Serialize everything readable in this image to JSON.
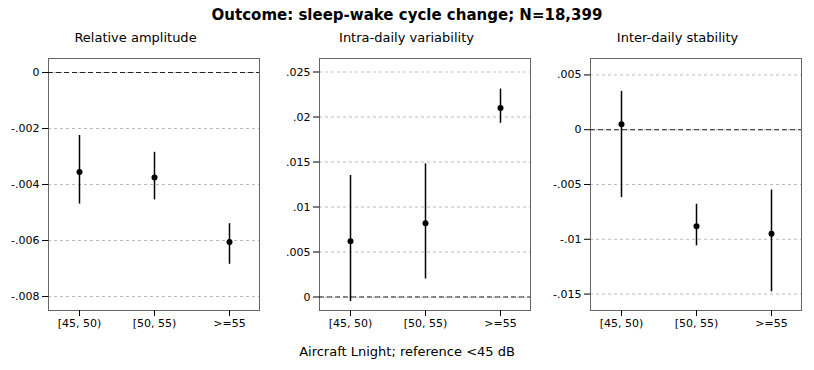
{
  "chart_data": {
    "type": "errorbar",
    "title": "Outcome: sleep-wake cycle change; N=18,399",
    "xlabel": "Aircraft Lnight; reference <45 dB",
    "categories": [
      "[45, 50)",
      "[50, 55)",
      ">=55"
    ],
    "grid": true,
    "panels": [
      {
        "title": "Relative amplitude",
        "values": [
          -0.00355,
          -0.00375,
          -0.00605
        ],
        "ci_low": [
          -0.0047,
          -0.00455,
          -0.00685
        ],
        "ci_high": [
          -0.00225,
          -0.00285,
          -0.0054
        ],
        "ylim": [
          -0.0085,
          0.0005
        ],
        "yticks": [
          {
            "value": -0.008,
            "label": "-.008"
          },
          {
            "value": -0.006,
            "label": "-.006"
          },
          {
            "value": -0.004,
            "label": "-.004"
          },
          {
            "value": -0.002,
            "label": "-.002"
          },
          0
        ],
        "hline": 0
      },
      {
        "title": "Intra-daily variability",
        "values": [
          0.0062,
          0.0082,
          0.021
        ],
        "ci_low": [
          -0.0005,
          0.002,
          0.0193
        ],
        "ci_high": [
          0.0135,
          0.0148,
          0.0231
        ],
        "ylim": [
          -0.0015,
          0.0265
        ],
        "yticks": [
          0,
          {
            "value": 0.005,
            "label": ".005"
          },
          {
            "value": 0.01,
            "label": ".01"
          },
          {
            "value": 0.015,
            "label": ".015"
          },
          {
            "value": 0.02,
            "label": ".02"
          },
          {
            "value": 0.025,
            "label": ".025"
          }
        ],
        "hline": 0
      },
      {
        "title": "Inter-daily stability",
        "values": [
          0.0005,
          -0.0088,
          -0.0095
        ],
        "ci_low": [
          -0.0062,
          -0.0106,
          -0.0148
        ],
        "ci_high": [
          0.0035,
          -0.0068,
          -0.0055
        ],
        "ylim": [
          -0.0165,
          0.0065
        ],
        "yticks": [
          {
            "value": -0.015,
            "label": "-.015"
          },
          {
            "value": -0.01,
            "label": "-.01"
          },
          {
            "value": -0.005,
            "label": "-.005"
          },
          0,
          {
            "value": 0.005,
            "label": ".005"
          }
        ],
        "hline": 0
      }
    ]
  }
}
